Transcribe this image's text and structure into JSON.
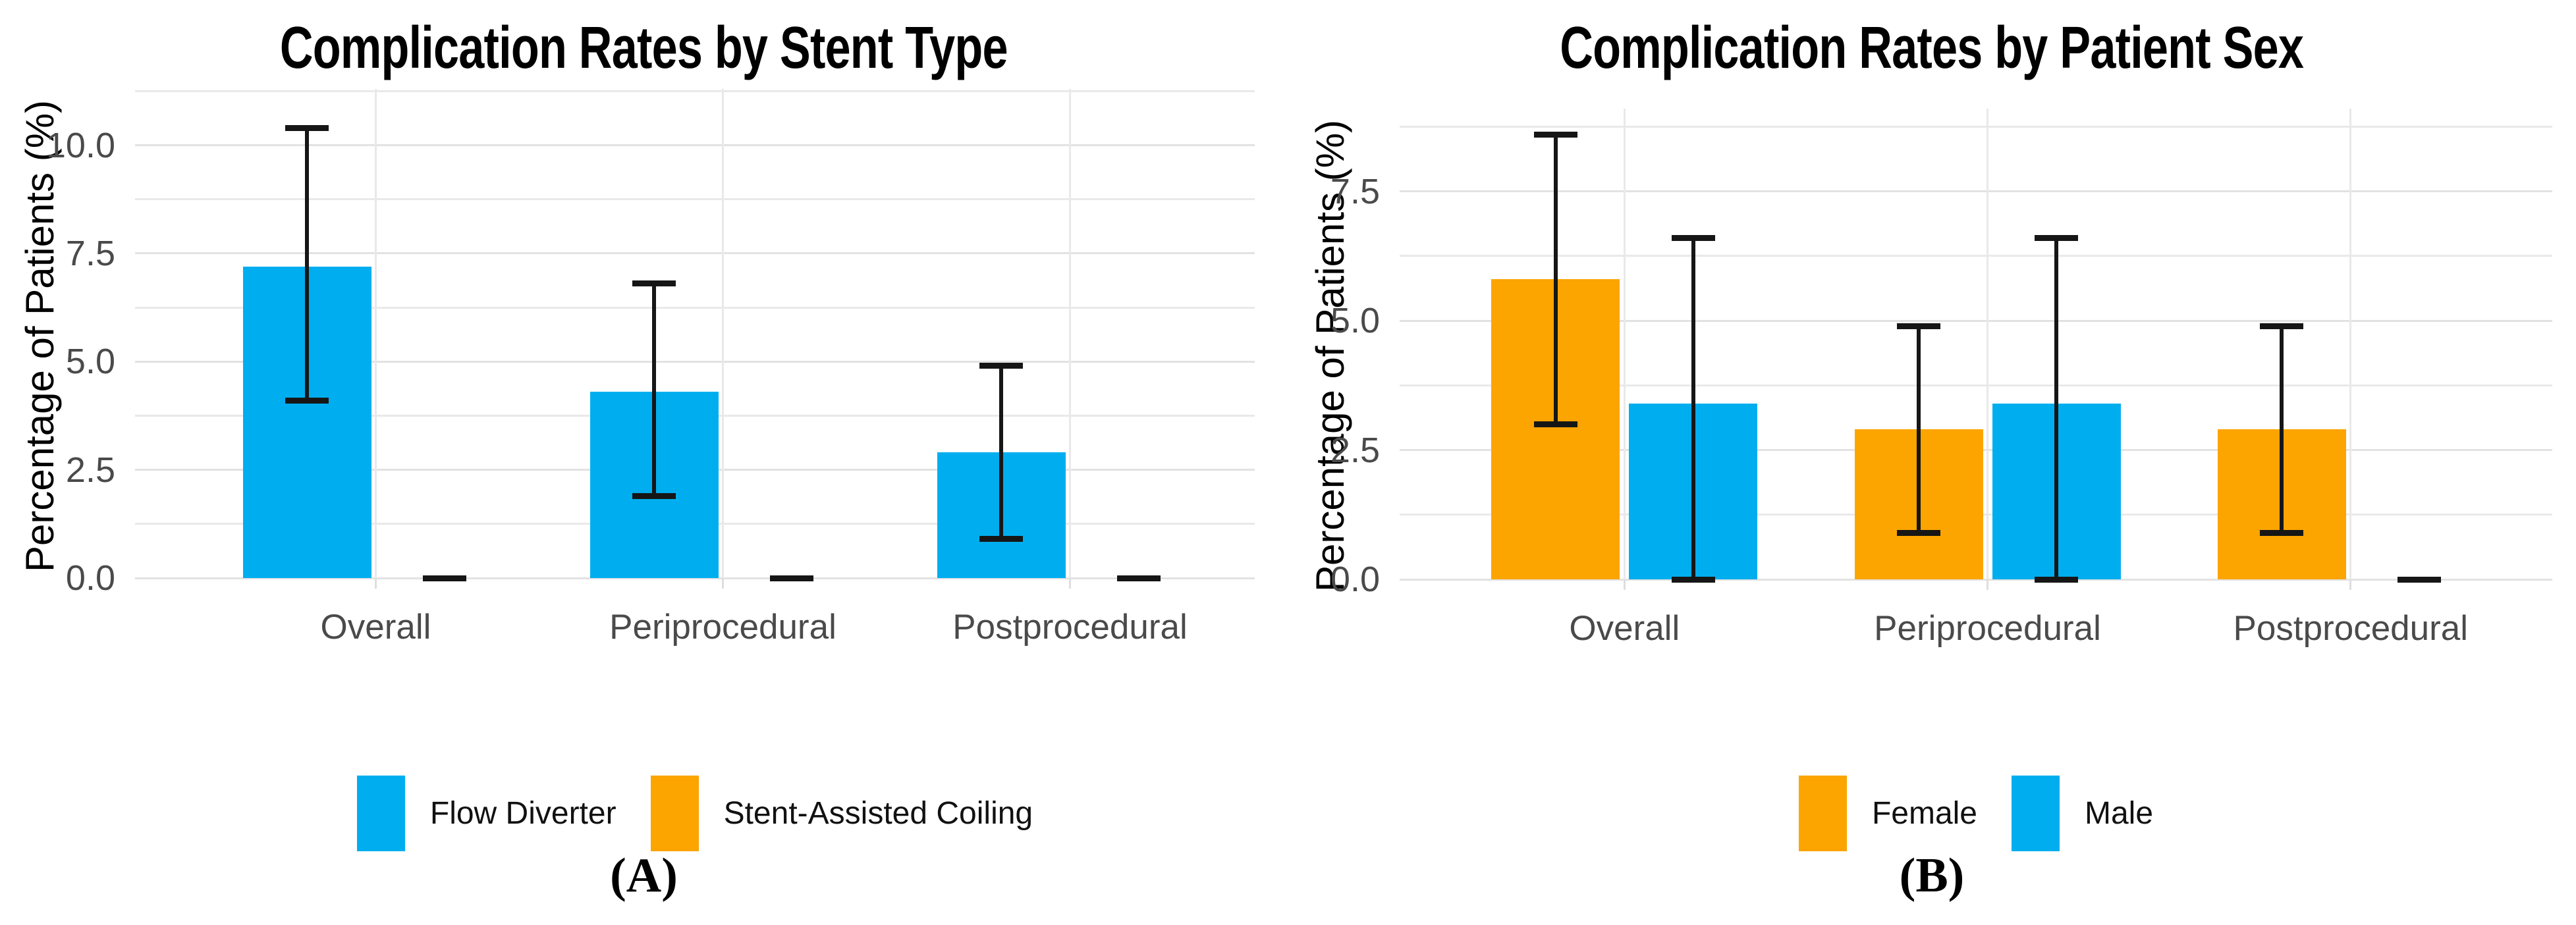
{
  "figure": {
    "background": "#ffffff",
    "colors": {
      "flow_diverter_blue": "#00AEEF",
      "stent_coiling_orange": "#FCA400",
      "female_orange": "#FCA400",
      "male_blue": "#00AEEF",
      "grid": "#e9e9e9",
      "axis_text": "#4a4a4a",
      "error_bar": "#161616"
    }
  },
  "chart_data": [
    {
      "id": "A",
      "type": "bar",
      "title": "Complication Rates by Stent Type",
      "ylabel": "Percentage of Patients (%)",
      "xlabel": "",
      "caption": "(A)",
      "categories": [
        "Overall",
        "Periprocedural",
        "Postprocedural"
      ],
      "series": [
        {
          "name": "Flow Diverter",
          "color": "#00AEEF",
          "values": [
            7.2,
            4.3,
            2.9
          ],
          "ci_low": [
            4.1,
            1.9,
            0.9
          ],
          "ci_high": [
            10.4,
            6.8,
            4.9
          ]
        },
        {
          "name": "Stent-Assisted Coiling",
          "color": "#FCA400",
          "values": [
            0,
            0,
            0
          ],
          "ci_low": [
            0,
            0,
            0
          ],
          "ci_high": [
            0,
            0,
            0
          ]
        }
      ],
      "ylim": [
        0,
        11.3
      ],
      "yticks": [
        0,
        2.5,
        5,
        7.5,
        10
      ],
      "ytick_labels": [
        "0.0",
        "2.5",
        "5.0",
        "7.5",
        "10.0"
      ],
      "grid_step": 1.25,
      "grid": true,
      "legend_position": "bottom",
      "error_bars": true
    },
    {
      "id": "B",
      "type": "bar",
      "title": "Complication Rates by Patient Sex",
      "ylabel": "Percentage of Patients (%)",
      "xlabel": "",
      "caption": "(B)",
      "categories": [
        "Overall",
        "Periprocedural",
        "Postprocedural"
      ],
      "series": [
        {
          "name": "Female",
          "color": "#FCA400",
          "values": [
            5.8,
            2.9,
            2.9
          ],
          "ci_low": [
            3.0,
            0.9,
            0.9
          ],
          "ci_high": [
            8.6,
            4.9,
            4.9
          ]
        },
        {
          "name": "Male",
          "color": "#00AEEF",
          "values": [
            3.4,
            3.4,
            0
          ],
          "ci_low": [
            0,
            0,
            0
          ],
          "ci_high": [
            6.6,
            6.6,
            0
          ]
        }
      ],
      "ylim": [
        0,
        9.1
      ],
      "yticks": [
        0,
        2.5,
        5,
        7.5
      ],
      "ytick_labels": [
        "0.0",
        "2.5",
        "5.0",
        "7.5"
      ],
      "grid_step": 1.25,
      "grid": true,
      "legend_position": "bottom",
      "error_bars": true
    }
  ]
}
